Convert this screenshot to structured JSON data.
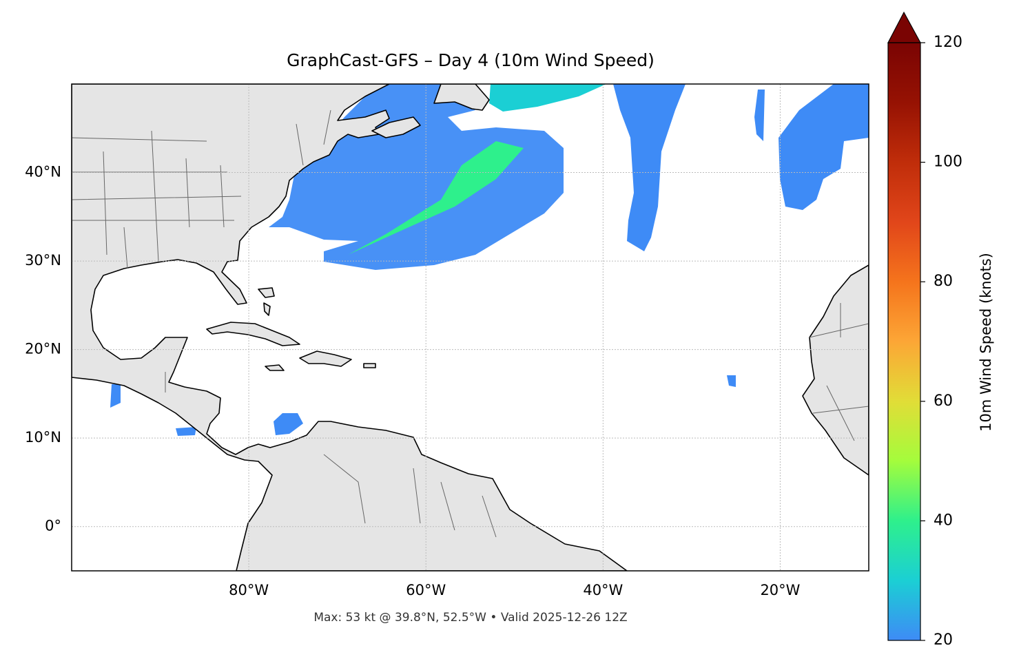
{
  "chart_data": {
    "type": "map",
    "title": "GraphCast-GFS – Day 4 (10m Wind Speed)",
    "annotation": "Max: 53 kt @ 39.8°N, 52.5°W • Valid 2025-12-26 12Z",
    "xlim": [
      -100,
      -10
    ],
    "ylim": [
      -5,
      50
    ],
    "xticks": [
      {
        "value": -80,
        "label": "80°W"
      },
      {
        "value": -60,
        "label": "60°W"
      },
      {
        "value": -40,
        "label": "40°W"
      },
      {
        "value": -20,
        "label": "20°W"
      }
    ],
    "yticks": [
      {
        "value": 0,
        "label": "0°"
      },
      {
        "value": 10,
        "label": "10°N"
      },
      {
        "value": 20,
        "label": "20°N"
      },
      {
        "value": 30,
        "label": "30°N"
      },
      {
        "value": 40,
        "label": "40°N"
      }
    ],
    "grid": true,
    "colorbar": {
      "label": "10m Wind Speed (knots)",
      "lim": [
        20,
        120
      ],
      "ticks": [
        20,
        40,
        60,
        80,
        100,
        120
      ],
      "colors": [
        "#3e8bf6",
        "#1bcfd4",
        "#2ef08c",
        "#a4fc3c",
        "#e1dd37",
        "#fca636",
        "#f5741c",
        "#e1461a",
        "#c02d0a",
        "#961203",
        "#7a0403"
      ]
    }
  }
}
